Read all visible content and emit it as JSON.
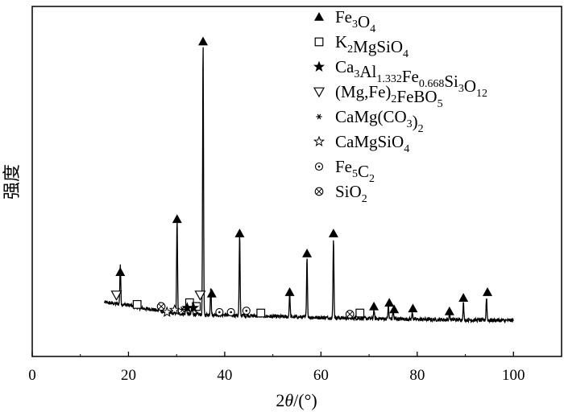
{
  "chart_data": {
    "type": "line",
    "title": "",
    "xlabel": "2θ/(°)",
    "ylabel": "强度",
    "xlim": [
      0,
      110
    ],
    "ylim": [
      0,
      100
    ],
    "x_ticks": [
      0,
      20,
      40,
      60,
      80,
      100
    ],
    "x_tick_labels": [
      "0",
      "20",
      "40",
      "60",
      "80",
      "100"
    ],
    "y_ticks_labeled": false,
    "grid": false,
    "legend_position": "top-right",
    "baseline": {
      "x": [
        15,
        17,
        20,
        22,
        25,
        27,
        30,
        33,
        36,
        40,
        45,
        50,
        55,
        60,
        65,
        70,
        75,
        80,
        85,
        90,
        95,
        100
      ],
      "y": [
        8,
        7.5,
        7,
        6,
        5.5,
        4.5,
        4,
        3.8,
        3.6,
        3.5,
        3.3,
        3,
        2.8,
        2.6,
        2.5,
        2.3,
        2.2,
        2,
        1.9,
        1.8,
        1.7,
        1.6
      ]
    },
    "peaks": [
      {
        "x": 18.3,
        "h": 14
      },
      {
        "x": 26.5,
        "h": 3
      },
      {
        "x": 30.1,
        "h": 33
      },
      {
        "x": 32.0,
        "h": 4
      },
      {
        "x": 33.2,
        "h": 4
      },
      {
        "x": 35.5,
        "h": 95
      },
      {
        "x": 37.1,
        "h": 10
      },
      {
        "x": 43.1,
        "h": 28
      },
      {
        "x": 53.5,
        "h": 8.5
      },
      {
        "x": 57.1,
        "h": 21
      },
      {
        "x": 62.6,
        "h": 28
      },
      {
        "x": 71.0,
        "h": 3
      },
      {
        "x": 74.0,
        "h": 4.5
      },
      {
        "x": 75.0,
        "h": 3
      },
      {
        "x": 79.0,
        "h": 2.5
      },
      {
        "x": 86.7,
        "h": 2
      },
      {
        "x": 89.6,
        "h": 6
      },
      {
        "x": 94.4,
        "h": 8
      }
    ],
    "markers": [
      {
        "x": 18.3,
        "y": 18.5,
        "symbol": "triangle-filled"
      },
      {
        "x": 17.5,
        "y": 10.5,
        "symbol": "triangle-open-down"
      },
      {
        "x": 30.1,
        "y": 37,
        "symbol": "triangle-filled"
      },
      {
        "x": 35.5,
        "y": 99,
        "symbol": "triangle-filled"
      },
      {
        "x": 37.3,
        "y": 11,
        "symbol": "triangle-filled"
      },
      {
        "x": 43.1,
        "y": 32,
        "symbol": "triangle-filled"
      },
      {
        "x": 53.5,
        "y": 11.5,
        "symbol": "triangle-filled"
      },
      {
        "x": 57.1,
        "y": 25,
        "symbol": "triangle-filled"
      },
      {
        "x": 62.6,
        "y": 32,
        "symbol": "triangle-filled"
      },
      {
        "x": 71.0,
        "y": 6.5,
        "symbol": "triangle-filled"
      },
      {
        "x": 74.2,
        "y": 7.8,
        "symbol": "triangle-filled"
      },
      {
        "x": 75.2,
        "y": 5.5,
        "symbol": "triangle-filled"
      },
      {
        "x": 79.1,
        "y": 5.8,
        "symbol": "triangle-filled"
      },
      {
        "x": 86.7,
        "y": 4.8,
        "symbol": "triangle-filled"
      },
      {
        "x": 89.6,
        "y": 9.5,
        "symbol": "triangle-filled"
      },
      {
        "x": 94.6,
        "y": 11.5,
        "symbol": "triangle-filled"
      },
      {
        "x": 34.9,
        "y": 10.5,
        "symbol": "triangle-open-down"
      },
      {
        "x": 21.8,
        "y": 7.2,
        "symbol": "square-open"
      },
      {
        "x": 32.7,
        "y": 7.8,
        "symbol": "square-open"
      },
      {
        "x": 34.1,
        "y": 6.5,
        "symbol": "square-open"
      },
      {
        "x": 47.5,
        "y": 4.2,
        "symbol": "square-open"
      },
      {
        "x": 68.1,
        "y": 4.2,
        "symbol": "square-open"
      },
      {
        "x": 26.8,
        "y": 6.5,
        "symbol": "circle-x"
      },
      {
        "x": 66.0,
        "y": 3.8,
        "symbol": "circle-x"
      },
      {
        "x": 28.0,
        "y": 4.5,
        "symbol": "star-open"
      },
      {
        "x": 29.6,
        "y": 5.3,
        "symbol": "star-open"
      },
      {
        "x": 32.2,
        "y": 6,
        "symbol": "star-filled"
      },
      {
        "x": 33.5,
        "y": 6,
        "symbol": "star-filled"
      },
      {
        "x": 31.2,
        "y": 5.5,
        "symbol": "asterisk"
      },
      {
        "x": 38.9,
        "y": 4.5,
        "symbol": "circle-dot"
      },
      {
        "x": 41.3,
        "y": 4.5,
        "symbol": "circle-dot"
      },
      {
        "x": 44.5,
        "y": 5,
        "symbol": "circle-dot"
      }
    ],
    "legend": [
      {
        "symbol": "triangle-filled",
        "parts": [
          [
            "n",
            "Fe"
          ],
          [
            "s",
            "3"
          ],
          [
            "n",
            "O"
          ],
          [
            "s",
            "4"
          ]
        ]
      },
      {
        "symbol": "square-open",
        "parts": [
          [
            "n",
            "K"
          ],
          [
            "s",
            "2"
          ],
          [
            "n",
            "MgSiO"
          ],
          [
            "s",
            "4"
          ]
        ]
      },
      {
        "symbol": "star-filled",
        "parts": [
          [
            "n",
            "Ca"
          ],
          [
            "s",
            "3"
          ],
          [
            "n",
            "Al"
          ],
          [
            "s",
            "1.332"
          ],
          [
            "n",
            "Fe"
          ],
          [
            "s",
            "0.668"
          ],
          [
            "n",
            "Si"
          ],
          [
            "s",
            "3"
          ],
          [
            "n",
            "O"
          ],
          [
            "s",
            "12"
          ]
        ]
      },
      {
        "symbol": "triangle-open-down",
        "parts": [
          [
            "n",
            "(Mg,Fe)"
          ],
          [
            "s",
            "2"
          ],
          [
            "n",
            "FeBO"
          ],
          [
            "s",
            "5"
          ]
        ]
      },
      {
        "symbol": "asterisk",
        "parts": [
          [
            "n",
            "CaMg(CO"
          ],
          [
            "s",
            "3"
          ],
          [
            "n",
            ")"
          ],
          [
            "s",
            "2"
          ]
        ]
      },
      {
        "symbol": "star-open",
        "parts": [
          [
            "n",
            "CaMgSiO"
          ],
          [
            "s",
            "4"
          ]
        ]
      },
      {
        "symbol": "circle-dot",
        "parts": [
          [
            "n",
            "Fe"
          ],
          [
            "s",
            "5"
          ],
          [
            "n",
            "C"
          ],
          [
            "s",
            "2"
          ]
        ]
      },
      {
        "symbol": "circle-x",
        "parts": [
          [
            "n",
            "SiO"
          ],
          [
            "s",
            "2"
          ]
        ]
      }
    ]
  }
}
